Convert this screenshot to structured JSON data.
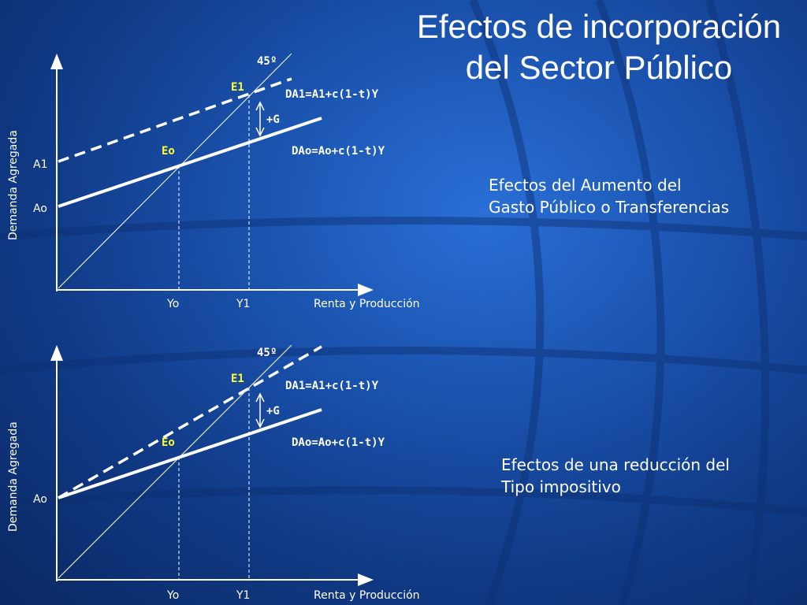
{
  "title": {
    "line1": "Efectos de incorporación",
    "line2": "del Sector Público"
  },
  "diagrams": [
    {
      "y_axis_label": "Demanda Agregada",
      "x_axis_label": "Renta y Producción",
      "x_ticks": [
        "Yo",
        "Y1"
      ],
      "y_ticks": [
        "A1",
        "Ao"
      ],
      "line_45_label": "45º",
      "point_e0": "Eo",
      "point_e1": "E1",
      "line_da1": "DA1=A1+c(1-t)Y",
      "line_da0": "DAo=Ao+c(1-t)Y",
      "shift_label": "+G",
      "note_line1": "Efectos del Aumento del",
      "note_line2": "Gasto Público o Transferencias"
    },
    {
      "y_axis_label": "Demanda Agregada",
      "x_axis_label": "Renta y Producción",
      "x_ticks": [
        "Yo",
        "Y1"
      ],
      "y_ticks": [
        "Ao"
      ],
      "line_45_label": "45º",
      "point_e0": "Eo",
      "point_e1": "E1",
      "line_da1": "DA1=A1+c(1-t)Y",
      "line_da0": "DAo=Ao+c(1-t)Y",
      "shift_label": "+G",
      "note_line1": "Efectos de una reducción del",
      "note_line2": "Tipo impositivo"
    }
  ],
  "colors": {
    "background": "#1a52ad",
    "text": "#ffffff",
    "point_labels": "#ffff33"
  }
}
